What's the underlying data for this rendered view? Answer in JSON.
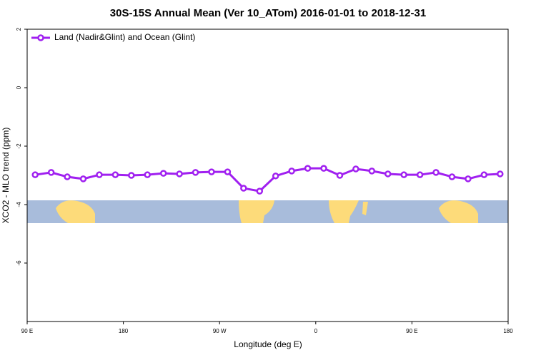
{
  "chart_data": {
    "type": "line",
    "title": "30S-15S Annual Mean (Ver 10_ATom)   2016-01-01 to 2018-12-31",
    "x_label": "Longitude (deg E)",
    "y_label": "XCO2 - MLO trend (ppm)",
    "x": [
      97.5,
      112.5,
      127.5,
      142.5,
      157.5,
      172.5,
      187.5,
      202.5,
      217.5,
      232.5,
      247.5,
      262.5,
      277.5,
      292.5,
      307.5,
      322.5,
      337.5,
      352.5,
      367.5,
      382.5,
      397.5,
      412.5,
      427.5,
      442.5,
      457.5,
      472.5,
      487.5,
      502.5,
      517.5,
      532.5
    ],
    "series": [
      {
        "name": "Land (Nadir&Glint) and Ocean (Glint)",
        "color": "#a020f0",
        "values": [
          -2.98,
          -2.9,
          -3.05,
          -3.12,
          -2.98,
          -2.98,
          -3.0,
          -2.98,
          -2.93,
          -2.95,
          -2.9,
          -2.88,
          -2.88,
          -3.44,
          -3.54,
          -3.02,
          -2.85,
          -2.76,
          -2.76,
          -3.0,
          -2.78,
          -2.85,
          -2.95,
          -2.98,
          -2.98,
          -2.9,
          -3.05,
          -3.12,
          -2.98,
          -2.95
        ]
      }
    ],
    "xlim": [
      90,
      540
    ],
    "xticks": [
      {
        "value": 90,
        "label": "90 E"
      },
      180,
      {
        "value": 270,
        "label": "90 W"
      },
      {
        "value": 360,
        "label": "0"
      },
      {
        "value": 450,
        "label": "90 E"
      },
      {
        "value": 540,
        "label": "180"
      }
    ],
    "ylim": [
      -8,
      2
    ],
    "yticks": [
      2,
      0,
      -2,
      -4,
      -6
    ],
    "legend": "top-left"
  }
}
